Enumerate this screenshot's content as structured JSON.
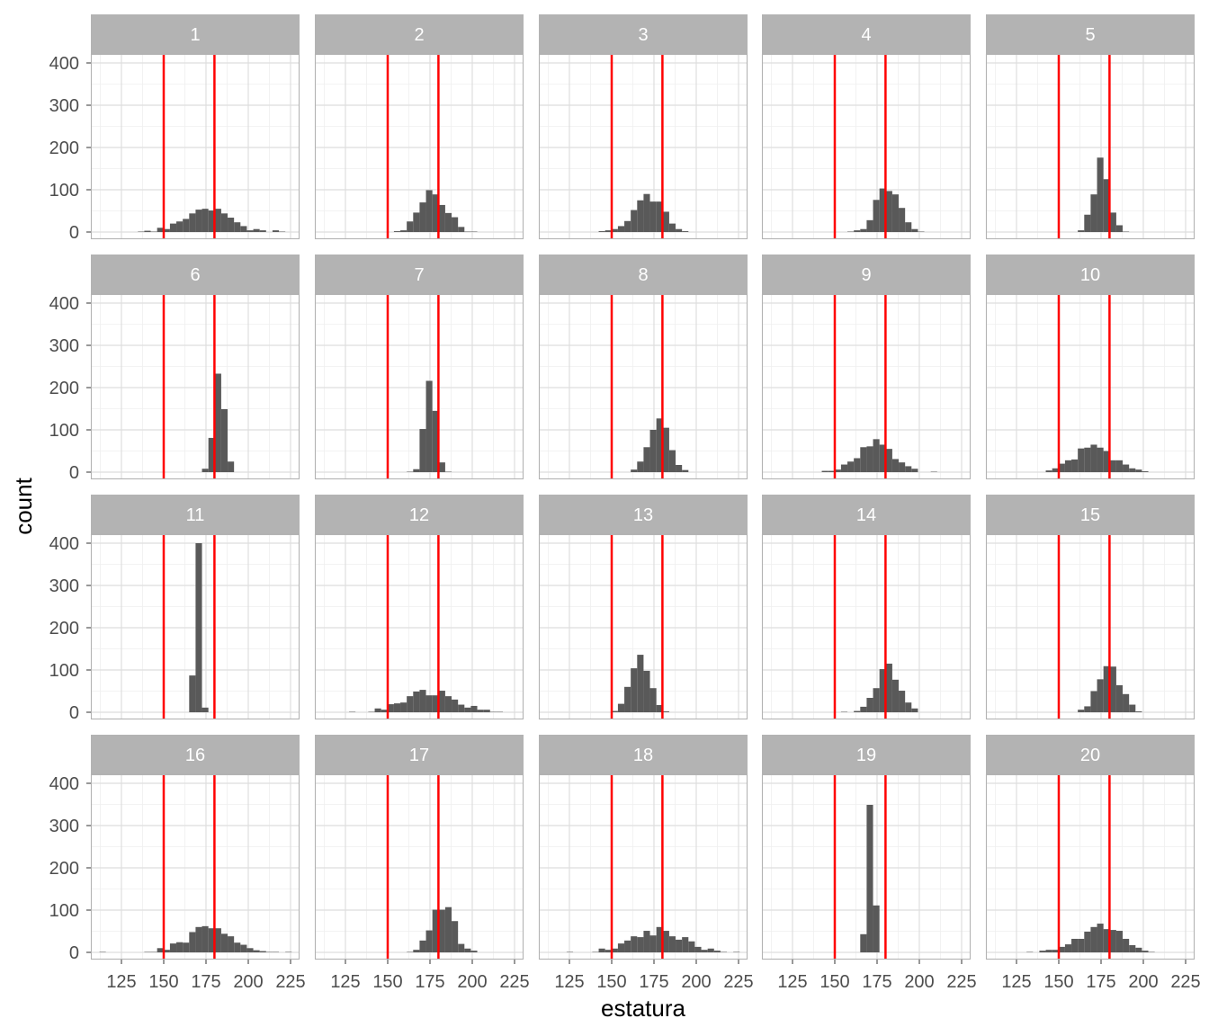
{
  "chart_data": {
    "type": "histogram-facets",
    "xlabel": "estatura",
    "ylabel": "count",
    "xlim": [
      106.9,
      230.3
    ],
    "ylim": [
      -20,
      421
    ],
    "x_ticks": [
      "125",
      "150",
      "175",
      "200",
      "225"
    ],
    "x_tick_values": [
      125,
      150,
      175,
      200,
      225
    ],
    "y_ticks": [
      "0",
      "100",
      "200",
      "300",
      "400"
    ],
    "y_tick_values": [
      0,
      100,
      200,
      300,
      400
    ],
    "grid": true,
    "bin_first_edge": 108.2,
    "binwidth": 3.79,
    "vlines": [
      150,
      180
    ],
    "colors": {
      "bar": "#595959",
      "vline": "#ff0000",
      "strip": "#b3b3b3",
      "border": "#b3b3b3",
      "grid_major": "#dedede",
      "grid_minor": "#efefef"
    },
    "panels": [
      {
        "label": "1",
        "first_bin_index": 7,
        "counts": [
          1,
          3,
          1,
          10,
          7,
          20,
          25,
          31,
          44,
          53,
          55,
          51,
          55,
          44,
          34,
          23,
          14,
          4,
          7,
          4,
          0,
          4,
          1
        ]
      },
      {
        "label": "2",
        "first_bin_index": 12,
        "counts": [
          2,
          4,
          25,
          46,
          70,
          99,
          89,
          64,
          45,
          35,
          12,
          1,
          1
        ]
      },
      {
        "label": "3",
        "first_bin_index": 9,
        "counts": [
          2,
          4,
          7,
          14,
          26,
          52,
          75,
          90,
          72,
          72,
          48,
          20,
          7,
          2
        ]
      },
      {
        "label": "4",
        "first_bin_index": 13,
        "counts": [
          1,
          4,
          7,
          28,
          76,
          103,
          97,
          89,
          57,
          23,
          7,
          1
        ]
      },
      {
        "label": "5",
        "first_bin_index": 14,
        "counts": [
          4,
          41,
          89,
          176,
          125,
          46,
          16,
          1
        ]
      },
      {
        "label": "6",
        "first_bin_index": 17,
        "counts": [
          8,
          81,
          233,
          149,
          25
        ]
      },
      {
        "label": "7",
        "first_bin_index": 14,
        "counts": [
          1,
          7,
          102,
          216,
          145,
          23,
          1
        ]
      },
      {
        "label": "8",
        "first_bin_index": 14,
        "counts": [
          6,
          25,
          59,
          100,
          127,
          105,
          52,
          17,
          5
        ]
      },
      {
        "label": "9",
        "first_bin_index": 9,
        "counts": [
          3,
          3,
          6,
          18,
          25,
          33,
          59,
          61,
          78,
          65,
          55,
          31,
          23,
          14,
          8,
          0,
          0,
          1
        ]
      },
      {
        "label": "10",
        "first_bin_index": 9,
        "counts": [
          4,
          9,
          20,
          28,
          30,
          56,
          58,
          65,
          58,
          50,
          28,
          28,
          18,
          9,
          6,
          2
        ]
      },
      {
        "label": "11",
        "first_bin_index": 15,
        "counts": [
          87,
          400,
          11
        ]
      },
      {
        "label": "12",
        "first_bin_index": 5,
        "counts": [
          1,
          0,
          0,
          1,
          9,
          6,
          19,
          21,
          23,
          38,
          49,
          53,
          40,
          40,
          51,
          38,
          30,
          18,
          11,
          15,
          6,
          6,
          1,
          1
        ]
      },
      {
        "label": "13",
        "first_bin_index": 11,
        "counts": [
          3,
          20,
          60,
          104,
          136,
          98,
          57,
          17,
          2
        ]
      },
      {
        "label": "14",
        "first_bin_index": 12,
        "counts": [
          1,
          0,
          3,
          13,
          34,
          57,
          102,
          115,
          77,
          51,
          23,
          9
        ]
      },
      {
        "label": "15",
        "first_bin_index": 14,
        "counts": [
          6,
          14,
          50,
          78,
          109,
          108,
          64,
          43,
          18,
          2
        ]
      },
      {
        "label": "16",
        "first_bin_index": 1,
        "counts": [
          1,
          0,
          0,
          0,
          0,
          0,
          0,
          1,
          1,
          10,
          6,
          21,
          24,
          23,
          48,
          60,
          62,
          57,
          57,
          44,
          38,
          23,
          18,
          10,
          5,
          3,
          1,
          1,
          0,
          1
        ]
      },
      {
        "label": "17",
        "first_bin_index": 14,
        "counts": [
          1,
          6,
          28,
          52,
          101,
          101,
          107,
          74,
          20,
          9,
          4
        ]
      },
      {
        "label": "18",
        "first_bin_index": 4,
        "counts": [
          1,
          0,
          0,
          0,
          1,
          9,
          6,
          9,
          21,
          28,
          38,
          36,
          51,
          40,
          60,
          51,
          38,
          30,
          36,
          26,
          13,
          6,
          9,
          4,
          1,
          0,
          1
        ]
      },
      {
        "label": "19",
        "first_bin_index": 15,
        "counts": [
          43,
          349,
          111
        ]
      },
      {
        "label": "20",
        "first_bin_index": 6,
        "counts": [
          1,
          0,
          4,
          6,
          6,
          13,
          19,
          32,
          32,
          49,
          60,
          68,
          55,
          53,
          51,
          32,
          17,
          11,
          4,
          1
        ]
      }
    ]
  }
}
